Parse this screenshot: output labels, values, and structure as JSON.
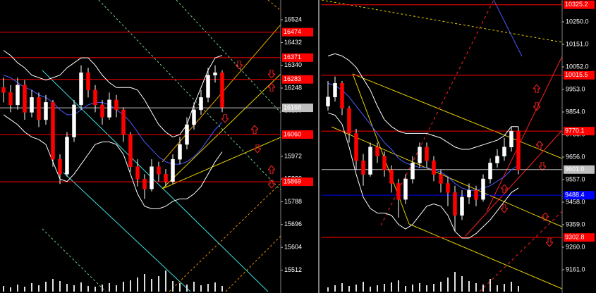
{
  "chart_data": [
    {
      "type": "candlestick",
      "ylim": [
        15425,
        16604
      ],
      "yticks": [
        16524,
        16432,
        16340,
        16248,
        16156,
        15972,
        15880,
        15788,
        15696,
        15604,
        15512
      ],
      "open": [
        16250,
        16230,
        16180,
        16260,
        16150,
        16210,
        16120,
        16190,
        15960,
        15900,
        16050,
        16180,
        16310,
        16240,
        16180,
        16130,
        16200,
        16160,
        16060,
        15930,
        15880,
        15840,
        15930,
        15900,
        15870,
        15960,
        16020,
        16100,
        16160,
        16210,
        16300,
        16310
      ],
      "high": [
        16290,
        16260,
        16290,
        16280,
        16240,
        16230,
        16220,
        16200,
        15980,
        16070,
        16200,
        16340,
        16330,
        16260,
        16200,
        16230,
        16220,
        16170,
        16070,
        15960,
        15900,
        15960,
        15950,
        15920,
        15980,
        16050,
        16130,
        16190,
        16240,
        16330,
        16340,
        16320
      ],
      "low": [
        16190,
        16150,
        16160,
        16120,
        16130,
        16090,
        16100,
        15930,
        15860,
        15890,
        16030,
        16160,
        16210,
        16150,
        16100,
        16120,
        16130,
        16030,
        15910,
        15850,
        15800,
        15830,
        15870,
        15850,
        15860,
        15940,
        16000,
        16080,
        16140,
        16190,
        16270,
        16150
      ],
      "close": [
        16230,
        16180,
        16260,
        16150,
        16210,
        16120,
        16190,
        15960,
        15900,
        16050,
        16180,
        16310,
        16240,
        16180,
        16130,
        16200,
        16160,
        16060,
        15930,
        15880,
        15840,
        15930,
        15900,
        15870,
        15960,
        16020,
        16100,
        16160,
        16210,
        16300,
        16310,
        16170
      ],
      "volume": [
        8,
        6,
        10,
        7,
        12,
        9,
        14,
        18,
        15,
        11,
        9,
        13,
        8,
        7,
        10,
        12,
        9,
        14,
        16,
        20,
        25,
        18,
        22,
        30,
        15,
        12,
        10,
        14,
        9,
        11,
        13,
        8
      ],
      "lines": [
        {
          "color": "#4a5cff",
          "values": [
            16300,
            16290,
            16270,
            16250,
            16240,
            16220,
            16210,
            16190,
            16160,
            16140,
            16140,
            16160,
            16180,
            16190,
            16190,
            16180,
            16160,
            16140,
            16110,
            16070,
            16030,
            16000,
            15970,
            15950,
            15940,
            15940,
            15950,
            15970,
            16000,
            16040,
            16080,
            16110
          ]
        },
        {
          "color": "#ffffff",
          "values": [
            16400,
            16380,
            16350,
            16330,
            16300,
            16290,
            16280,
            16290,
            16300,
            16330,
            16350,
            16370,
            16370,
            16340,
            16300,
            16270,
            16250,
            16250,
            16250,
            16240,
            16200,
            16150,
            16100,
            16070,
            16050,
            16060,
            16100,
            16180,
            16250,
            16320,
            16370,
            16380
          ]
        },
        {
          "color": "#ffffff",
          "values": [
            16140,
            16120,
            16100,
            16070,
            16050,
            16040,
            16020,
            15950,
            15880,
            15870,
            15900,
            15940,
            15980,
            16020,
            16030,
            16030,
            16020,
            15980,
            15900,
            15820,
            15770,
            15760,
            15760,
            15770,
            15790,
            15800,
            15800,
            15820,
            15850,
            15900,
            15950,
            15990
          ]
        }
      ],
      "levels": [
        {
          "value": 16474,
          "color": "#ff0000"
        },
        {
          "value": 16371,
          "color": "#ff0000"
        },
        {
          "value": 16283,
          "color": "#ff0000"
        },
        {
          "value": 16168,
          "color": "#c0c0c0"
        },
        {
          "value": 16060,
          "color": "#ff0000"
        },
        {
          "value": 15869,
          "color": "#ff0000"
        }
      ]
    },
    {
      "type": "candlestick",
      "ylim": [
        9065,
        10346
      ],
      "yticks": [
        {
          "value": 10250,
          "label": "10250.0"
        },
        {
          "value": 10151,
          "label": "10151.0"
        },
        {
          "value": 10052,
          "label": "10052.0"
        },
        {
          "value": 9953,
          "label": "9953.0"
        },
        {
          "value": 9854,
          "label": "9854.0"
        },
        {
          "value": 9755,
          "label": "9755.0"
        },
        {
          "value": 9656,
          "label": "9656.0"
        },
        {
          "value": 9557,
          "label": "9557.0"
        },
        {
          "value": 9458,
          "label": "9458.0"
        },
        {
          "value": 9359,
          "label": "9359.0"
        },
        {
          "value": 9260,
          "label": "9260.0"
        },
        {
          "value": 9161,
          "label": "9161.0"
        }
      ],
      "open": [
        9880,
        9920,
        9980,
        9870,
        9760,
        9640,
        9580,
        9700,
        9660,
        9600,
        9540,
        9470,
        9560,
        9630,
        9700,
        9640,
        9580,
        9540,
        9500,
        9400,
        9480,
        9510,
        9470,
        9560,
        9630,
        9660,
        9700,
        9770
      ],
      "high": [
        9990,
        10010,
        9990,
        9880,
        9780,
        9670,
        9720,
        9720,
        9680,
        9620,
        9560,
        9580,
        9660,
        9720,
        9720,
        9660,
        9600,
        9570,
        9530,
        9510,
        9540,
        9530,
        9580,
        9650,
        9690,
        9740,
        9790,
        9790
      ],
      "low": [
        9860,
        9900,
        9840,
        9720,
        9600,
        9530,
        9570,
        9630,
        9570,
        9500,
        9390,
        9450,
        9540,
        9610,
        9610,
        9550,
        9500,
        9440,
        9330,
        9380,
        9450,
        9440,
        9460,
        9540,
        9610,
        9640,
        9680,
        9580
      ],
      "close": [
        9920,
        9980,
        9870,
        9760,
        9640,
        9580,
        9700,
        9660,
        9600,
        9540,
        9470,
        9560,
        9630,
        9700,
        9640,
        9580,
        9540,
        9500,
        9400,
        9480,
        9510,
        9470,
        9560,
        9630,
        9660,
        9700,
        9770,
        9600
      ],
      "volume": [
        6,
        9,
        12,
        8,
        10,
        14,
        7,
        9,
        11,
        13,
        16,
        8,
        10,
        12,
        9,
        11,
        14,
        20,
        28,
        22,
        15,
        12,
        10,
        18,
        9,
        11,
        14,
        8
      ],
      "lines": [
        {
          "color": "#4a5cff",
          "values": [
            9980,
            9970,
            9950,
            9920,
            9880,
            9840,
            9800,
            9760,
            9720,
            9690,
            9650,
            9630,
            9620,
            9610,
            9610,
            9600,
            9590,
            9570,
            9540,
            9520,
            9510,
            9510,
            9520,
            9530,
            9550,
            9570,
            9600,
            9620
          ]
        },
        {
          "color": "#ffffff",
          "values": [
            10100,
            10110,
            10100,
            10080,
            10050,
            10000,
            9950,
            9880,
            9820,
            9790,
            9770,
            9760,
            9760,
            9760,
            9760,
            9750,
            9740,
            9720,
            9700,
            9690,
            9690,
            9700,
            9710,
            9720,
            9730,
            9750,
            9790,
            9790
          ]
        },
        {
          "color": "#ffffff",
          "values": [
            9850,
            9840,
            9800,
            9700,
            9580,
            9480,
            9430,
            9410,
            9410,
            9400,
            9360,
            9340,
            9360,
            9400,
            9440,
            9450,
            9440,
            9400,
            9330,
            9300,
            9300,
            9320,
            9350,
            9380,
            9420,
            9460,
            9500,
            9520
          ]
        }
      ],
      "levels": [
        {
          "value": 10325.2,
          "color": "#ff0000"
        },
        {
          "value": 10015.5,
          "color": "#ff0000"
        },
        {
          "value": 9770.1,
          "color": "#ff0000"
        },
        {
          "value": 9601.0,
          "label": "9601.0",
          "color": "#c0c0c0"
        },
        {
          "value": 9488.4,
          "color": "#0000ff"
        },
        {
          "value": 9302.8,
          "color": "#ff0000"
        }
      ]
    }
  ]
}
